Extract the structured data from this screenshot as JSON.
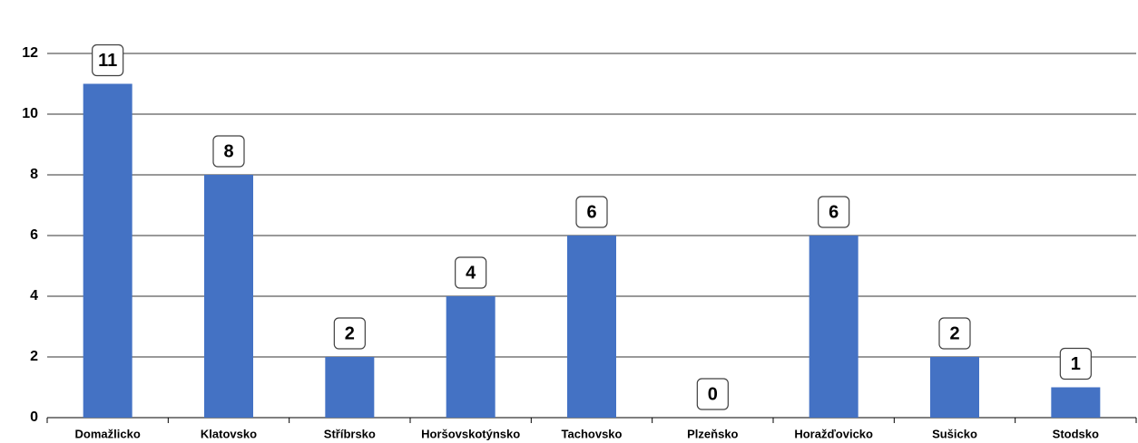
{
  "chart_data": {
    "type": "bar",
    "categories": [
      "Domažlicko",
      "Klatovsko",
      "Stříbrsko",
      "Horšovskotýnsko",
      "Tachovsko",
      "Plzeňsko",
      "Horažďovicko",
      "Sušicko",
      "Stodsko"
    ],
    "values": [
      11,
      8,
      2,
      4,
      6,
      0,
      6,
      2,
      1
    ],
    "color": "#4472c4",
    "ylim": [
      0,
      12
    ],
    "yticks": [
      0,
      2,
      4,
      6,
      8,
      10,
      12
    ],
    "grid": true
  }
}
